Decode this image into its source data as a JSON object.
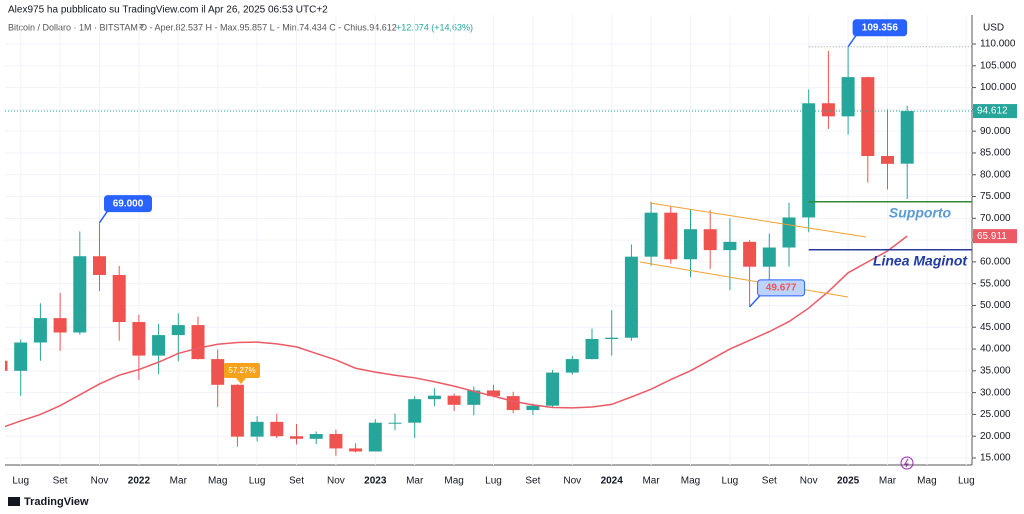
{
  "header": {
    "publisher": "Alex975 ha pubblicato su TradingView.com il Apr 26, 2025 06:53 UTC+2",
    "legend": "Bitcoin / Dollaro · 1M · BITSTAMP",
    "ohlc": "O - Aper.82.537  H - Max.95.857  L - Min.74.434  C - Chius.94.612",
    "change": "+12.074 (+14,63%)"
  },
  "footer": {
    "brand": "TradingView"
  },
  "chart_data": {
    "type": "candlestick",
    "currency": "USD",
    "categories": [
      null,
      "Lug",
      null,
      "Set",
      null,
      "Nov",
      null,
      "2022",
      null,
      "Mar",
      null,
      "Mag",
      null,
      "Lug",
      null,
      "Set",
      null,
      "Nov",
      null,
      "2023",
      null,
      "Mar",
      null,
      "Mag",
      null,
      "Lug",
      null,
      "Set",
      null,
      "Nov",
      null,
      "2024",
      null,
      "Mar",
      null,
      "Mag",
      null,
      "Lug",
      null,
      "Set",
      null,
      "Nov",
      null,
      "2025",
      null,
      "Mar",
      null,
      "Mag",
      null,
      "Lug"
    ],
    "open": [
      37300,
      35000,
      41500,
      47100,
      43800,
      61300,
      57000,
      46200,
      38500,
      43200,
      45500,
      37700,
      31800,
      19900,
      23300,
      20000,
      19400,
      20500,
      17200,
      16500,
      23100,
      23100,
      28500,
      29300,
      27200,
      30500,
      29200,
      26000,
      27000,
      34600,
      37700,
      42300,
      42600,
      61200,
      71300,
      60600,
      67500,
      62700,
      64600,
      58900,
      63300,
      70200,
      96400,
      93400,
      102400,
      84300,
      82537,
      null,
      null,
      null
    ],
    "high": [
      41300,
      42200,
      50500,
      52900,
      67000,
      69000,
      59100,
      47900,
      45800,
      48200,
      47400,
      39900,
      31900,
      24600,
      25200,
      22800,
      21100,
      21500,
      18400,
      23900,
      25200,
      29200,
      31000,
      29800,
      31400,
      31800,
      30200,
      27500,
      35200,
      38400,
      44700,
      48900,
      64000,
      73800,
      72800,
      71900,
      71900,
      70000,
      65000,
      66500,
      73600,
      99600,
      108400,
      109356,
      102500,
      95000,
      95857,
      null,
      null,
      null
    ],
    "low": [
      28800,
      29300,
      37300,
      39600,
      43300,
      53300,
      41900,
      32900,
      34300,
      37200,
      37600,
      26700,
      17600,
      18800,
      19600,
      18100,
      18200,
      15500,
      16300,
      16500,
      21400,
      19600,
      26900,
      25800,
      24800,
      28900,
      25300,
      24900,
      26600,
      34100,
      37600,
      38500,
      41900,
      59100,
      59600,
      56500,
      58400,
      53500,
      49677,
      52500,
      58900,
      66800,
      90500,
      89200,
      78200,
      76600,
      74434,
      null,
      null,
      null
    ],
    "close": [
      35000,
      41500,
      47100,
      43800,
      61300,
      57000,
      46200,
      38500,
      43200,
      45500,
      37700,
      31800,
      19900,
      23300,
      20000,
      19400,
      20500,
      17200,
      16500,
      23100,
      23100,
      28500,
      29300,
      27200,
      30500,
      29200,
      26000,
      27000,
      34600,
      37700,
      42300,
      42600,
      61200,
      71300,
      60600,
      67500,
      62700,
      64600,
      58900,
      63300,
      70200,
      96400,
      93400,
      102400,
      84300,
      82500,
      94612,
      null,
      null,
      null
    ],
    "up_color": "#26a69a",
    "down_color": "#ef5350",
    "price_label": "94.612",
    "ma": {
      "color": "#ec5a66",
      "last_label": "65.911",
      "values": [
        21900,
        23500,
        25000,
        27000,
        29500,
        32000,
        34000,
        35300,
        37000,
        39000,
        40200,
        41100,
        41500,
        41600,
        41200,
        40500,
        39000,
        37500,
        35600,
        34700,
        34000,
        33400,
        32500,
        31500,
        30300,
        29200,
        28000,
        27200,
        26600,
        26500,
        26700,
        27300,
        29000,
        30800,
        33000,
        35000,
        37500,
        40000,
        42000,
        44000,
        46300,
        49400,
        53200,
        57500,
        60000,
        62500,
        65911,
        null,
        null,
        null
      ]
    },
    "annotations": [
      {
        "label": "69.000",
        "value": 69000
      },
      {
        "label": "109.356",
        "value": 109356
      },
      {
        "label": "49.677",
        "value": 49677
      }
    ],
    "drawdown_label": "57.27%",
    "levels": [
      {
        "label": "Supporto",
        "value": 73800,
        "color": "#2e8b3a",
        "text_color": "#5b9bd5"
      },
      {
        "label": "Linea Maginot",
        "value": 62800,
        "color": "#2b3a9c",
        "text_color": "#1f3aa0"
      }
    ],
    "ylim": [
      15000,
      110000
    ],
    "yticks": [
      {
        "value": 15000,
        "label": "15.000"
      },
      {
        "value": 20000,
        "label": "20.000"
      },
      {
        "value": 25000,
        "label": "25.000"
      },
      {
        "value": 30000,
        "label": "30.000"
      },
      {
        "value": 35000,
        "label": "35.000"
      },
      {
        "value": 40000,
        "label": "40.000"
      },
      {
        "value": 45000,
        "label": "45.000"
      },
      {
        "value": 50000,
        "label": "50.000"
      },
      {
        "value": 55000,
        "label": "55.000"
      },
      {
        "value": 60000,
        "label": "60.000"
      },
      {
        "value": 65000,
        "label": "65.000"
      },
      {
        "value": 70000,
        "label": "70.000"
      },
      {
        "value": 75000,
        "label": "75.000"
      },
      {
        "value": 80000,
        "label": "80.000"
      },
      {
        "value": 85000,
        "label": "85.000"
      },
      {
        "value": 90000,
        "label": "90.000"
      },
      {
        "value": 95000,
        "label": "95.000"
      },
      {
        "value": 100000,
        "label": "100.000"
      },
      {
        "value": 105000,
        "label": "105.000"
      },
      {
        "value": 110000,
        "label": "110.000"
      }
    ],
    "grid": true
  }
}
